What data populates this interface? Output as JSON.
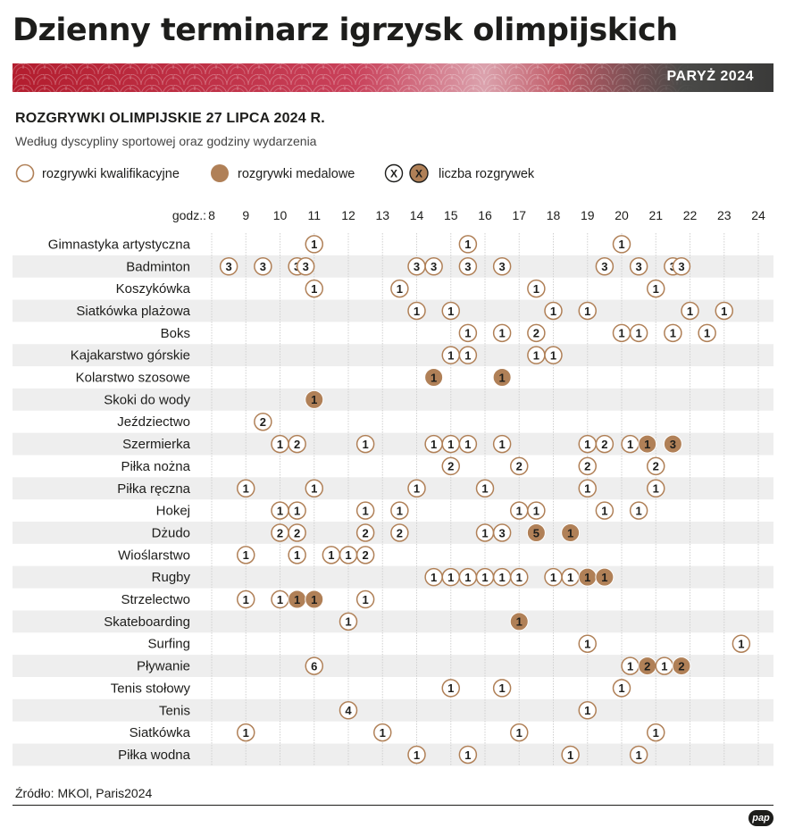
{
  "title": "Dzienny terminarz igrzysk olimpijskich",
  "banner_label": "PARYŻ 2024",
  "subhead": "ROZGRYWKI OLIMPIJSKIE 27 LIPCA 2024 R.",
  "subtitle": "Według dyscypliny sportowej oraz godziny wydarzenia",
  "legend": {
    "qualifying": "rozgrywki kwalifikacyjne",
    "medal": "rozgrywki medalowe",
    "marker_symbol": "X",
    "count": "liczba rozgrywek"
  },
  "source": "Źródło: MKOl, Paris2024",
  "logo": "pap",
  "colors": {
    "medal": "#b08057",
    "banner_red": "#b31d2e",
    "row_band": "#eeeeee",
    "grid": "#d0d0d0"
  },
  "chart_data": {
    "type": "scatter",
    "x_axis_prefix": "godz.:",
    "x_ticks": [
      8,
      9,
      10,
      11,
      12,
      13,
      14,
      15,
      16,
      17,
      18,
      19,
      20,
      21,
      22,
      23,
      24
    ],
    "xlim": [
      8,
      24
    ],
    "rows": [
      {
        "name": "Gimnastyka artystyczna",
        "events": [
          [
            11,
            1,
            "q"
          ],
          [
            15.5,
            1,
            "q"
          ],
          [
            20,
            1,
            "q"
          ]
        ]
      },
      {
        "name": "Badminton",
        "events": [
          [
            8.5,
            3,
            "q"
          ],
          [
            9.5,
            3,
            "q"
          ],
          [
            10.5,
            3,
            "q"
          ],
          [
            10.75,
            3,
            "q"
          ],
          [
            14,
            3,
            "q"
          ],
          [
            14.5,
            3,
            "q"
          ],
          [
            15.5,
            3,
            "q"
          ],
          [
            16.5,
            3,
            "q"
          ],
          [
            19.5,
            3,
            "q"
          ],
          [
            20.5,
            3,
            "q"
          ],
          [
            21.5,
            3,
            "q"
          ],
          [
            21.75,
            3,
            "q"
          ]
        ]
      },
      {
        "name": "Koszykówka",
        "events": [
          [
            11,
            1,
            "q"
          ],
          [
            13.5,
            1,
            "q"
          ],
          [
            17.5,
            1,
            "q"
          ],
          [
            21,
            1,
            "q"
          ]
        ]
      },
      {
        "name": "Siatkówka plażowa",
        "events": [
          [
            14,
            1,
            "q"
          ],
          [
            15,
            1,
            "q"
          ],
          [
            18,
            1,
            "q"
          ],
          [
            19,
            1,
            "q"
          ],
          [
            22,
            1,
            "q"
          ],
          [
            23,
            1,
            "q"
          ]
        ]
      },
      {
        "name": "Boks",
        "events": [
          [
            15.5,
            1,
            "q"
          ],
          [
            16.5,
            1,
            "q"
          ],
          [
            17.5,
            2,
            "q"
          ],
          [
            20,
            1,
            "q"
          ],
          [
            20.5,
            1,
            "q"
          ],
          [
            21.5,
            1,
            "q"
          ],
          [
            22.5,
            1,
            "q"
          ]
        ]
      },
      {
        "name": "Kajakarstwo górskie",
        "events": [
          [
            15,
            1,
            "q"
          ],
          [
            15.5,
            1,
            "q"
          ],
          [
            17.5,
            1,
            "q"
          ],
          [
            18,
            1,
            "q"
          ]
        ]
      },
      {
        "name": "Kolarstwo szosowe",
        "events": [
          [
            14.5,
            1,
            "m"
          ],
          [
            16.5,
            1,
            "m"
          ]
        ]
      },
      {
        "name": "Skoki do wody",
        "events": [
          [
            11,
            1,
            "m"
          ]
        ]
      },
      {
        "name": "Jeździectwo",
        "events": [
          [
            9.5,
            2,
            "q"
          ]
        ]
      },
      {
        "name": "Szermierka",
        "events": [
          [
            10,
            1,
            "q"
          ],
          [
            10.5,
            2,
            "q"
          ],
          [
            12.5,
            1,
            "q"
          ],
          [
            14.5,
            1,
            "q"
          ],
          [
            15,
            1,
            "q"
          ],
          [
            15.5,
            1,
            "q"
          ],
          [
            16.5,
            1,
            "q"
          ],
          [
            19,
            1,
            "q"
          ],
          [
            19.5,
            2,
            "q"
          ],
          [
            20.25,
            1,
            "q"
          ],
          [
            20.75,
            1,
            "m"
          ],
          [
            21.5,
            3,
            "m"
          ]
        ]
      },
      {
        "name": "Piłka nożna",
        "events": [
          [
            15,
            2,
            "q"
          ],
          [
            17,
            2,
            "q"
          ],
          [
            19,
            2,
            "q"
          ],
          [
            21,
            2,
            "q"
          ]
        ]
      },
      {
        "name": "Piłka ręczna",
        "events": [
          [
            9,
            1,
            "q"
          ],
          [
            11,
            1,
            "q"
          ],
          [
            14,
            1,
            "q"
          ],
          [
            16,
            1,
            "q"
          ],
          [
            19,
            1,
            "q"
          ],
          [
            21,
            1,
            "q"
          ]
        ]
      },
      {
        "name": "Hokej",
        "events": [
          [
            10,
            1,
            "q"
          ],
          [
            10.5,
            1,
            "q"
          ],
          [
            12.5,
            1,
            "q"
          ],
          [
            13.5,
            1,
            "q"
          ],
          [
            17,
            1,
            "q"
          ],
          [
            17.5,
            1,
            "q"
          ],
          [
            19.5,
            1,
            "q"
          ],
          [
            20.5,
            1,
            "q"
          ]
        ]
      },
      {
        "name": "Dżudo",
        "events": [
          [
            10,
            2,
            "q"
          ],
          [
            10.5,
            2,
            "q"
          ],
          [
            12.5,
            2,
            "q"
          ],
          [
            13.5,
            2,
            "q"
          ],
          [
            16,
            1,
            "q"
          ],
          [
            16.5,
            3,
            "q"
          ],
          [
            17.5,
            5,
            "m"
          ],
          [
            18.5,
            1,
            "m"
          ]
        ]
      },
      {
        "name": "Wioślarstwo",
        "events": [
          [
            9,
            1,
            "q"
          ],
          [
            10.5,
            1,
            "q"
          ],
          [
            11.5,
            1,
            "q"
          ],
          [
            12,
            1,
            "q"
          ],
          [
            12.5,
            2,
            "q"
          ]
        ]
      },
      {
        "name": "Rugby",
        "events": [
          [
            14.5,
            1,
            "q"
          ],
          [
            15,
            1,
            "q"
          ],
          [
            15.5,
            1,
            "q"
          ],
          [
            16,
            1,
            "q"
          ],
          [
            16.5,
            1,
            "q"
          ],
          [
            17,
            1,
            "q"
          ],
          [
            18,
            1,
            "q"
          ],
          [
            18.5,
            1,
            "q"
          ],
          [
            19,
            1,
            "m"
          ],
          [
            19.5,
            1,
            "m"
          ]
        ]
      },
      {
        "name": "Strzelectwo",
        "events": [
          [
            9,
            1,
            "q"
          ],
          [
            10,
            1,
            "q"
          ],
          [
            10.5,
            1,
            "m"
          ],
          [
            11,
            1,
            "m"
          ],
          [
            12.5,
            1,
            "q"
          ]
        ]
      },
      {
        "name": "Skateboarding",
        "events": [
          [
            12,
            1,
            "q"
          ],
          [
            17,
            1,
            "m"
          ]
        ]
      },
      {
        "name": "Surfing",
        "events": [
          [
            19,
            1,
            "q"
          ],
          [
            23.5,
            1,
            "q"
          ]
        ]
      },
      {
        "name": "Pływanie",
        "events": [
          [
            11,
            6,
            "q"
          ],
          [
            20.25,
            1,
            "q"
          ],
          [
            20.75,
            2,
            "m"
          ],
          [
            21.25,
            1,
            "q"
          ],
          [
            21.75,
            2,
            "m"
          ]
        ]
      },
      {
        "name": "Tenis stołowy",
        "events": [
          [
            15,
            1,
            "q"
          ],
          [
            16.5,
            1,
            "q"
          ],
          [
            20,
            1,
            "q"
          ]
        ]
      },
      {
        "name": "Tenis",
        "events": [
          [
            12,
            4,
            "q"
          ],
          [
            19,
            1,
            "q"
          ]
        ]
      },
      {
        "name": "Siatkówka",
        "events": [
          [
            9,
            1,
            "q"
          ],
          [
            13,
            1,
            "q"
          ],
          [
            17,
            1,
            "q"
          ],
          [
            21,
            1,
            "q"
          ]
        ]
      },
      {
        "name": "Piłka wodna",
        "events": [
          [
            14,
            1,
            "q"
          ],
          [
            15.5,
            1,
            "q"
          ],
          [
            18.5,
            1,
            "q"
          ],
          [
            20.5,
            1,
            "q"
          ]
        ]
      }
    ]
  }
}
